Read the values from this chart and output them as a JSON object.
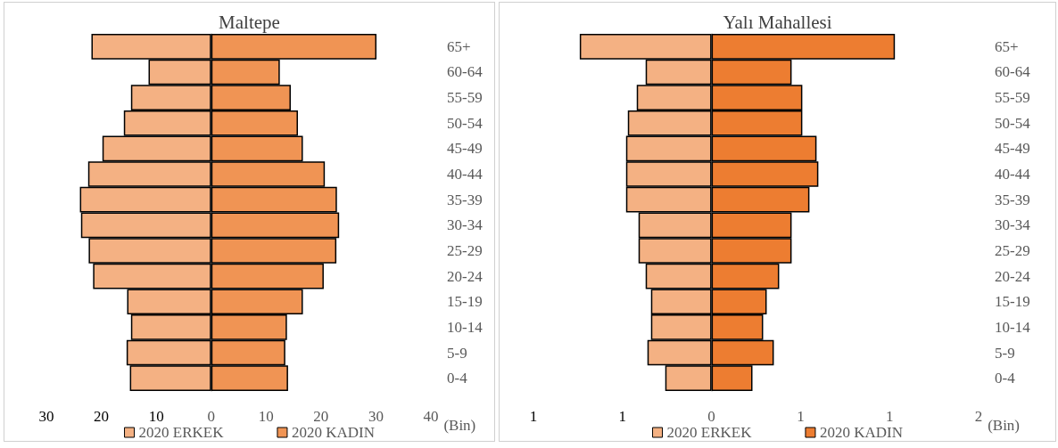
{
  "chart_data": [
    {
      "type": "bar",
      "title": "Maltepe",
      "xlabel": "(Bin)",
      "orientation": "horizontal",
      "stacked": true,
      "legend": "bottom",
      "categories": [
        "65+",
        "60-64",
        "55-59",
        "50-54",
        "45-49",
        "40-44",
        "35-39",
        "30-34",
        "25-29",
        "20-24",
        "15-19",
        "10-14",
        "5-9",
        "0-4"
      ],
      "xlim": [
        -30,
        40
      ],
      "xticks": [
        {
          "value": -30,
          "label": "30"
        },
        {
          "value": -20,
          "label": "20"
        },
        {
          "value": -10,
          "label": "10"
        },
        0,
        10,
        20,
        30,
        40
      ],
      "series": [
        {
          "name": "2020 ERKEK",
          "color": "#f4b183",
          "values": [
            -21.8,
            -11.4,
            -14.6,
            -15.9,
            -19.8,
            -22.4,
            -23.9,
            -23.7,
            -22.3,
            -21.5,
            -15.3,
            -14.6,
            -15.4,
            -14.8
          ]
        },
        {
          "name": "2020 KADIN",
          "color": "#f09454",
          "values": [
            30.1,
            12.5,
            14.5,
            15.8,
            16.7,
            20.7,
            22.9,
            23.3,
            22.8,
            20.5,
            16.7,
            13.8,
            13.5,
            14.0
          ]
        }
      ]
    },
    {
      "type": "bar",
      "title": "Yalı Mahallesi",
      "xlabel": "(Bin)",
      "orientation": "horizontal",
      "stacked": true,
      "legend": "bottom",
      "categories": [
        "65+",
        "60-64",
        "55-59",
        "50-54",
        "45-49",
        "40-44",
        "35-39",
        "30-34",
        "25-29",
        "20-24",
        "15-19",
        "10-14",
        "5-9",
        "0-4"
      ],
      "xlim": [
        -1,
        1.5
      ],
      "xticks": [
        {
          "value": -1,
          "label": "1"
        },
        {
          "value": -0.5,
          "label": "1"
        },
        0,
        {
          "value": 0.5,
          "label": "1"
        },
        1,
        {
          "value": 1.5,
          "label": "2"
        }
      ],
      "series": [
        {
          "name": "2020 ERKEK",
          "color": "#f4b183",
          "values": [
            -0.74,
            -0.37,
            -0.42,
            -0.47,
            -0.48,
            -0.48,
            -0.48,
            -0.41,
            -0.41,
            -0.37,
            -0.34,
            -0.34,
            -0.36,
            -0.26
          ]
        },
        {
          "name": "2020 KADIN",
          "color": "#ed7d31",
          "values": [
            1.03,
            0.45,
            0.51,
            0.51,
            0.59,
            0.6,
            0.55,
            0.45,
            0.45,
            0.38,
            0.31,
            0.29,
            0.35,
            0.23
          ]
        }
      ]
    }
  ]
}
